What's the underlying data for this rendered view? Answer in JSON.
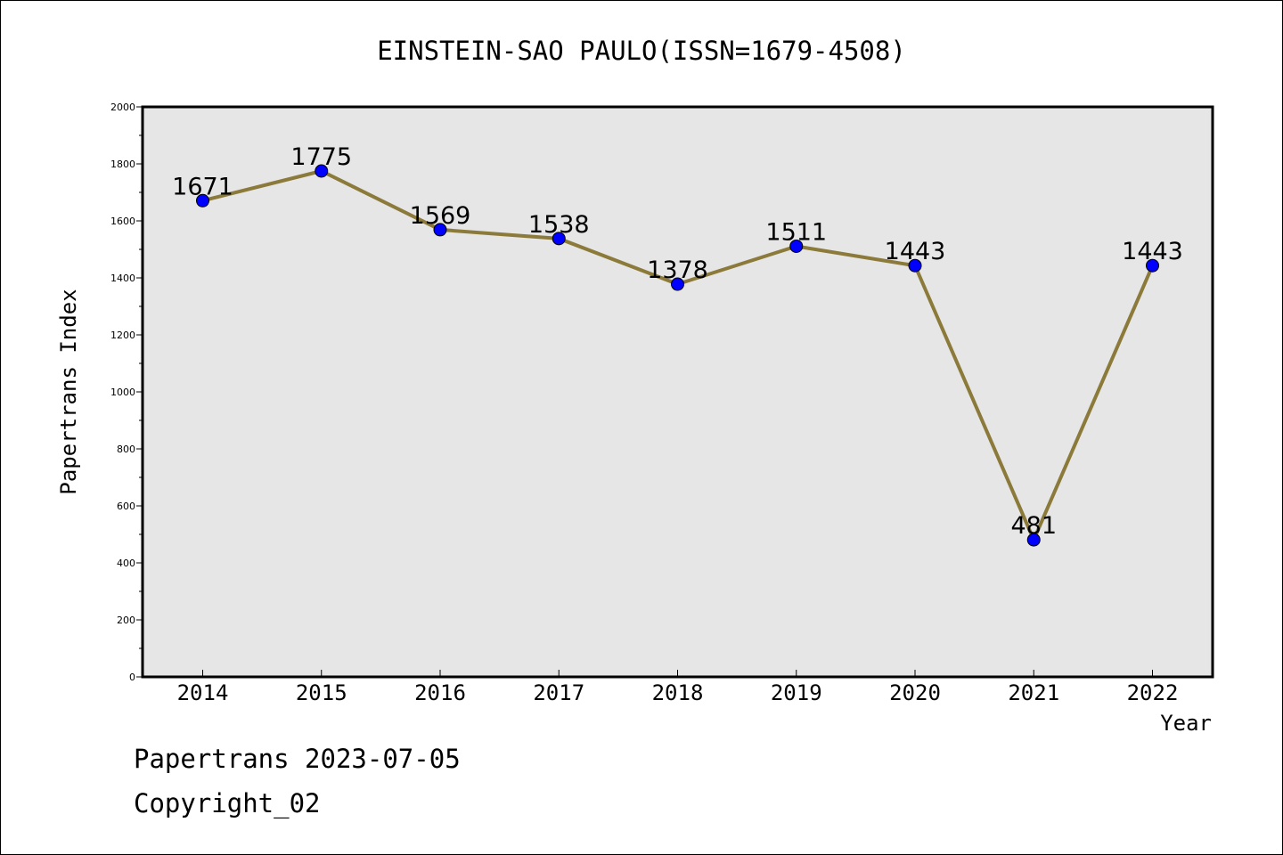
{
  "chart_data": {
    "type": "line",
    "title": "EINSTEIN-SAO PAULO(ISSN=1679-4508)",
    "xlabel": "Year",
    "ylabel": "Papertrans Index",
    "x": [
      "2014",
      "2015",
      "2016",
      "2017",
      "2018",
      "2019",
      "2020",
      "2021",
      "2022"
    ],
    "series": [
      {
        "values": [
          1671,
          1775,
          1569,
          1538,
          1378,
          1511,
          1443,
          481,
          1443
        ]
      }
    ],
    "data_labels": [
      "1671",
      "1775",
      "1569",
      "1538",
      "1378",
      "1511",
      "1443",
      "481",
      "1443"
    ],
    "ylim": [
      0,
      2000
    ],
    "yticks": [
      0,
      200,
      400,
      600,
      800,
      1000,
      1200,
      1400,
      1600,
      1800,
      2000
    ],
    "grid": false,
    "legend": false,
    "colors": {
      "line": "#8b7a3a",
      "marker": "#0000ff",
      "plot_background": "#e6e6e6"
    }
  },
  "footer": {
    "date_text": "Papertrans 2023-07-05",
    "copyright_text": "Copyright_02"
  }
}
